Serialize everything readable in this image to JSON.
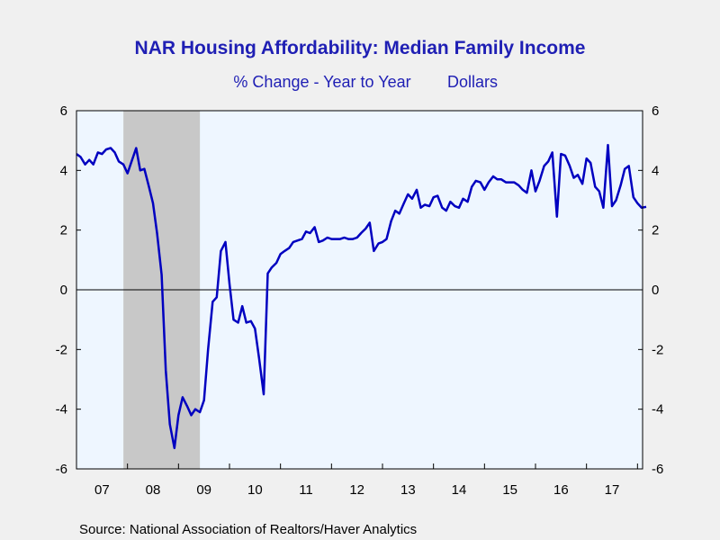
{
  "chart_data": {
    "type": "line",
    "title": "NAR Housing Affordability: Median Family Income",
    "subtitle_left": "% Change - Year to Year",
    "subtitle_right": "Dollars",
    "source": "Source:  National Association of Realtors/Haver Analytics",
    "x_tick_labels": [
      "07",
      "08",
      "09",
      "10",
      "11",
      "12",
      "13",
      "14",
      "15",
      "16",
      "17"
    ],
    "x_tick_years": [
      2007,
      2008,
      2009,
      2010,
      2011,
      2012,
      2013,
      2014,
      2015,
      2016,
      2017
    ],
    "x_range": [
      2007.0,
      2018.1
    ],
    "ylim": [
      -6,
      6
    ],
    "y_ticks": [
      6,
      4,
      2,
      0,
      -2,
      -4,
      -6
    ],
    "y_tick_labels": [
      "6",
      "4",
      "2",
      "0",
      "-2",
      "-4",
      "-6"
    ],
    "zero_line": true,
    "grid": false,
    "line_color": "#0000c0",
    "plot_bg": "#eef6ff",
    "recession_color": "#c8c8c8",
    "recessions": [
      {
        "start": 2007.92,
        "end": 2009.42
      }
    ],
    "series": [
      {
        "points": [
          [
            2007.0,
            4.55
          ],
          [
            2007.08,
            4.45
          ],
          [
            2007.17,
            4.2
          ],
          [
            2007.25,
            4.35
          ],
          [
            2007.33,
            4.2
          ],
          [
            2007.42,
            4.6
          ],
          [
            2007.5,
            4.55
          ],
          [
            2007.58,
            4.7
          ],
          [
            2007.67,
            4.75
          ],
          [
            2007.75,
            4.6
          ],
          [
            2007.83,
            4.3
          ],
          [
            2007.92,
            4.2
          ],
          [
            2008.0,
            3.9
          ],
          [
            2008.08,
            4.3
          ],
          [
            2008.17,
            4.75
          ],
          [
            2008.25,
            4.0
          ],
          [
            2008.33,
            4.05
          ],
          [
            2008.42,
            3.45
          ],
          [
            2008.5,
            2.9
          ],
          [
            2008.58,
            1.9
          ],
          [
            2008.67,
            0.5
          ],
          [
            2008.75,
            -2.7
          ],
          [
            2008.83,
            -4.5
          ],
          [
            2008.92,
            -5.3
          ],
          [
            2009.0,
            -4.2
          ],
          [
            2009.08,
            -3.6
          ],
          [
            2009.17,
            -3.9
          ],
          [
            2009.25,
            -4.2
          ],
          [
            2009.33,
            -4.0
          ],
          [
            2009.42,
            -4.1
          ],
          [
            2009.5,
            -3.7
          ],
          [
            2009.58,
            -2.0
          ],
          [
            2009.67,
            -0.4
          ],
          [
            2009.75,
            -0.25
          ],
          [
            2009.83,
            1.3
          ],
          [
            2009.92,
            1.6
          ],
          [
            2010.0,
            0.2
          ],
          [
            2010.08,
            -1.0
          ],
          [
            2010.17,
            -1.1
          ],
          [
            2010.25,
            -0.55
          ],
          [
            2010.33,
            -1.1
          ],
          [
            2010.42,
            -1.05
          ],
          [
            2010.5,
            -1.3
          ],
          [
            2010.58,
            -2.3
          ],
          [
            2010.67,
            -3.5
          ],
          [
            2010.75,
            0.55
          ],
          [
            2010.83,
            0.75
          ],
          [
            2010.92,
            0.9
          ],
          [
            2011.0,
            1.2
          ],
          [
            2011.08,
            1.3
          ],
          [
            2011.17,
            1.4
          ],
          [
            2011.25,
            1.6
          ],
          [
            2011.33,
            1.65
          ],
          [
            2011.42,
            1.7
          ],
          [
            2011.5,
            1.95
          ],
          [
            2011.58,
            1.9
          ],
          [
            2011.67,
            2.1
          ],
          [
            2011.75,
            1.6
          ],
          [
            2011.83,
            1.65
          ],
          [
            2011.92,
            1.75
          ],
          [
            2012.0,
            1.7
          ],
          [
            2012.08,
            1.7
          ],
          [
            2012.17,
            1.7
          ],
          [
            2012.25,
            1.75
          ],
          [
            2012.33,
            1.7
          ],
          [
            2012.42,
            1.7
          ],
          [
            2012.5,
            1.75
          ],
          [
            2012.58,
            1.9
          ],
          [
            2012.67,
            2.05
          ],
          [
            2012.75,
            2.25
          ],
          [
            2012.83,
            1.3
          ],
          [
            2012.92,
            1.55
          ],
          [
            2013.0,
            1.6
          ],
          [
            2013.08,
            1.7
          ],
          [
            2013.17,
            2.3
          ],
          [
            2013.25,
            2.65
          ],
          [
            2013.33,
            2.55
          ],
          [
            2013.42,
            2.9
          ],
          [
            2013.5,
            3.2
          ],
          [
            2013.58,
            3.05
          ],
          [
            2013.67,
            3.35
          ],
          [
            2013.75,
            2.75
          ],
          [
            2013.83,
            2.85
          ],
          [
            2013.92,
            2.8
          ],
          [
            2014.0,
            3.1
          ],
          [
            2014.08,
            3.15
          ],
          [
            2014.17,
            2.75
          ],
          [
            2014.25,
            2.65
          ],
          [
            2014.33,
            2.95
          ],
          [
            2014.42,
            2.8
          ],
          [
            2014.5,
            2.75
          ],
          [
            2014.58,
            3.05
          ],
          [
            2014.67,
            2.95
          ],
          [
            2014.75,
            3.45
          ],
          [
            2014.83,
            3.65
          ],
          [
            2014.92,
            3.6
          ],
          [
            2015.0,
            3.35
          ],
          [
            2015.08,
            3.6
          ],
          [
            2015.17,
            3.8
          ],
          [
            2015.25,
            3.7
          ],
          [
            2015.33,
            3.7
          ],
          [
            2015.42,
            3.6
          ],
          [
            2015.5,
            3.6
          ],
          [
            2015.58,
            3.6
          ],
          [
            2015.67,
            3.5
          ],
          [
            2015.75,
            3.35
          ],
          [
            2015.83,
            3.25
          ],
          [
            2015.92,
            4.0
          ],
          [
            2016.0,
            3.3
          ],
          [
            2016.08,
            3.65
          ],
          [
            2016.17,
            4.15
          ],
          [
            2016.25,
            4.3
          ],
          [
            2016.33,
            4.6
          ],
          [
            2016.42,
            2.45
          ],
          [
            2016.5,
            4.55
          ],
          [
            2016.58,
            4.5
          ],
          [
            2016.67,
            4.15
          ],
          [
            2016.75,
            3.75
          ],
          [
            2016.83,
            3.85
          ],
          [
            2016.92,
            3.55
          ],
          [
            2017.0,
            4.4
          ],
          [
            2017.08,
            4.25
          ],
          [
            2017.17,
            3.45
          ],
          [
            2017.25,
            3.3
          ],
          [
            2017.33,
            2.75
          ],
          [
            2017.42,
            4.85
          ],
          [
            2017.5,
            2.8
          ],
          [
            2017.58,
            3.0
          ],
          [
            2017.67,
            3.5
          ],
          [
            2017.75,
            4.05
          ],
          [
            2017.83,
            4.15
          ],
          [
            2017.92,
            3.1
          ],
          [
            2018.0,
            2.9
          ],
          [
            2018.08,
            2.75
          ],
          [
            2018.17,
            2.78
          ]
        ]
      }
    ]
  }
}
